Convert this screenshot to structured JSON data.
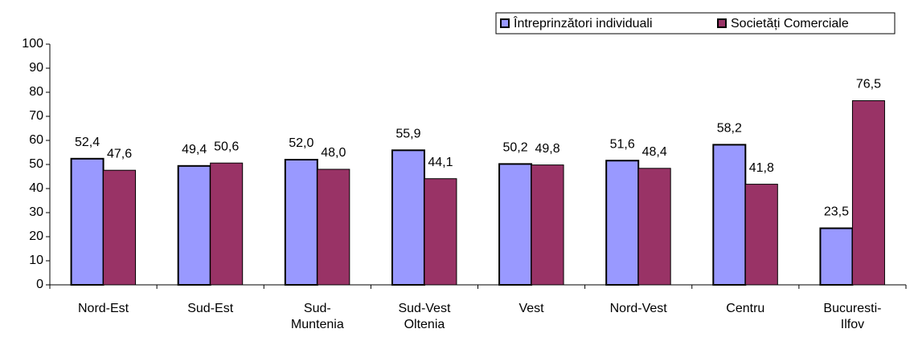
{
  "chart_data": {
    "type": "bar",
    "categories": [
      "Nord-Est",
      "Sud-Est",
      "Sud-\nMuntenia",
      "Sud-Vest\nOltenia",
      "Vest",
      "Nord-Vest",
      "Centru",
      "Bucuresti-\nIlfov"
    ],
    "series": [
      {
        "name": "Întreprinzători individuali",
        "color": "#9999ff",
        "values": [
          52.4,
          49.4,
          52.0,
          55.9,
          50.2,
          51.6,
          58.2,
          23.5
        ],
        "value_labels": [
          "52,4",
          "49,4",
          "52,0",
          "55,9",
          "50,2",
          "51,6",
          "58,2",
          "23,5"
        ]
      },
      {
        "name": "Societăți Comerciale",
        "color": "#993366",
        "values": [
          47.6,
          50.6,
          48.0,
          44.1,
          49.8,
          48.4,
          41.8,
          76.5
        ],
        "value_labels": [
          "47,6",
          "50,6",
          "48,0",
          "44,1",
          "49,8",
          "48,4",
          "41,8",
          "76,5"
        ]
      }
    ],
    "ylim": [
      0,
      100
    ],
    "yticks": [
      0,
      10,
      20,
      30,
      40,
      50,
      60,
      70,
      80,
      90,
      100
    ],
    "legend": "top-right"
  }
}
